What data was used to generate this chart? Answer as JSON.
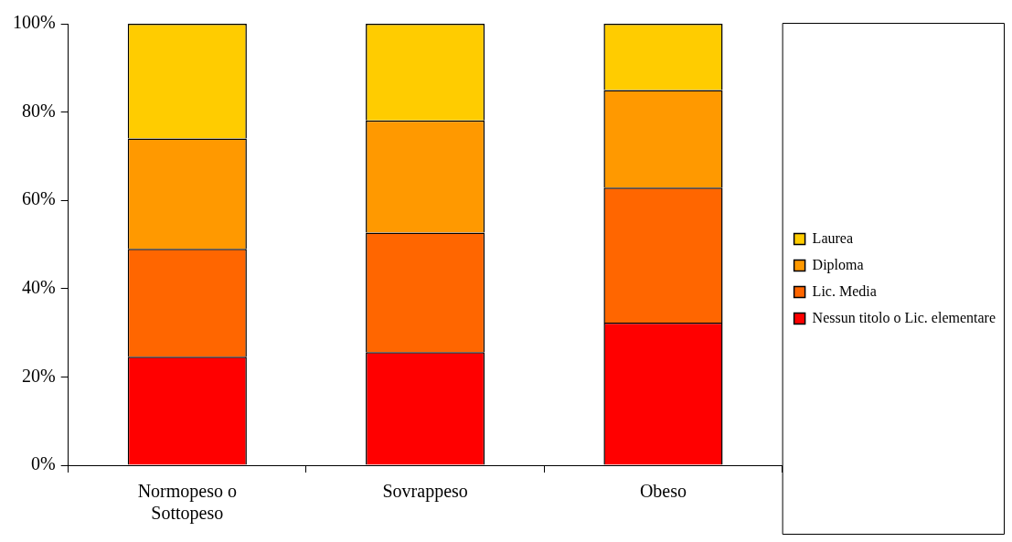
{
  "chart_data": {
    "type": "bar",
    "stacked": true,
    "legend": "right",
    "categories": [
      "Normopeso o Sottopeso",
      "Sovrappeso",
      "Obeso"
    ],
    "series": [
      {
        "name": "Nessun titolo o Lic. elementare",
        "color": "#ff0000",
        "values": [
          24.6,
          25.6,
          32.3
        ]
      },
      {
        "name": "Lic. Media",
        "color": "#ff6600",
        "values": [
          24.4,
          27.1,
          30.6
        ]
      },
      {
        "name": "Diploma",
        "color": "#ff9900",
        "values": [
          25.0,
          25.4,
          22.1
        ]
      },
      {
        "name": "Laurea",
        "color": "#ffcc00",
        "values": [
          26.0,
          21.9,
          15.0
        ]
      }
    ],
    "ylim": [
      0,
      100
    ],
    "yticks": [
      {
        "value": 0,
        "label": "0%"
      },
      {
        "value": 20,
        "label": "20%"
      },
      {
        "value": 40,
        "label": "40%"
      },
      {
        "value": 60,
        "label": "60%"
      },
      {
        "value": 80,
        "label": "80%"
      },
      {
        "value": 100,
        "label": "100%"
      }
    ]
  }
}
